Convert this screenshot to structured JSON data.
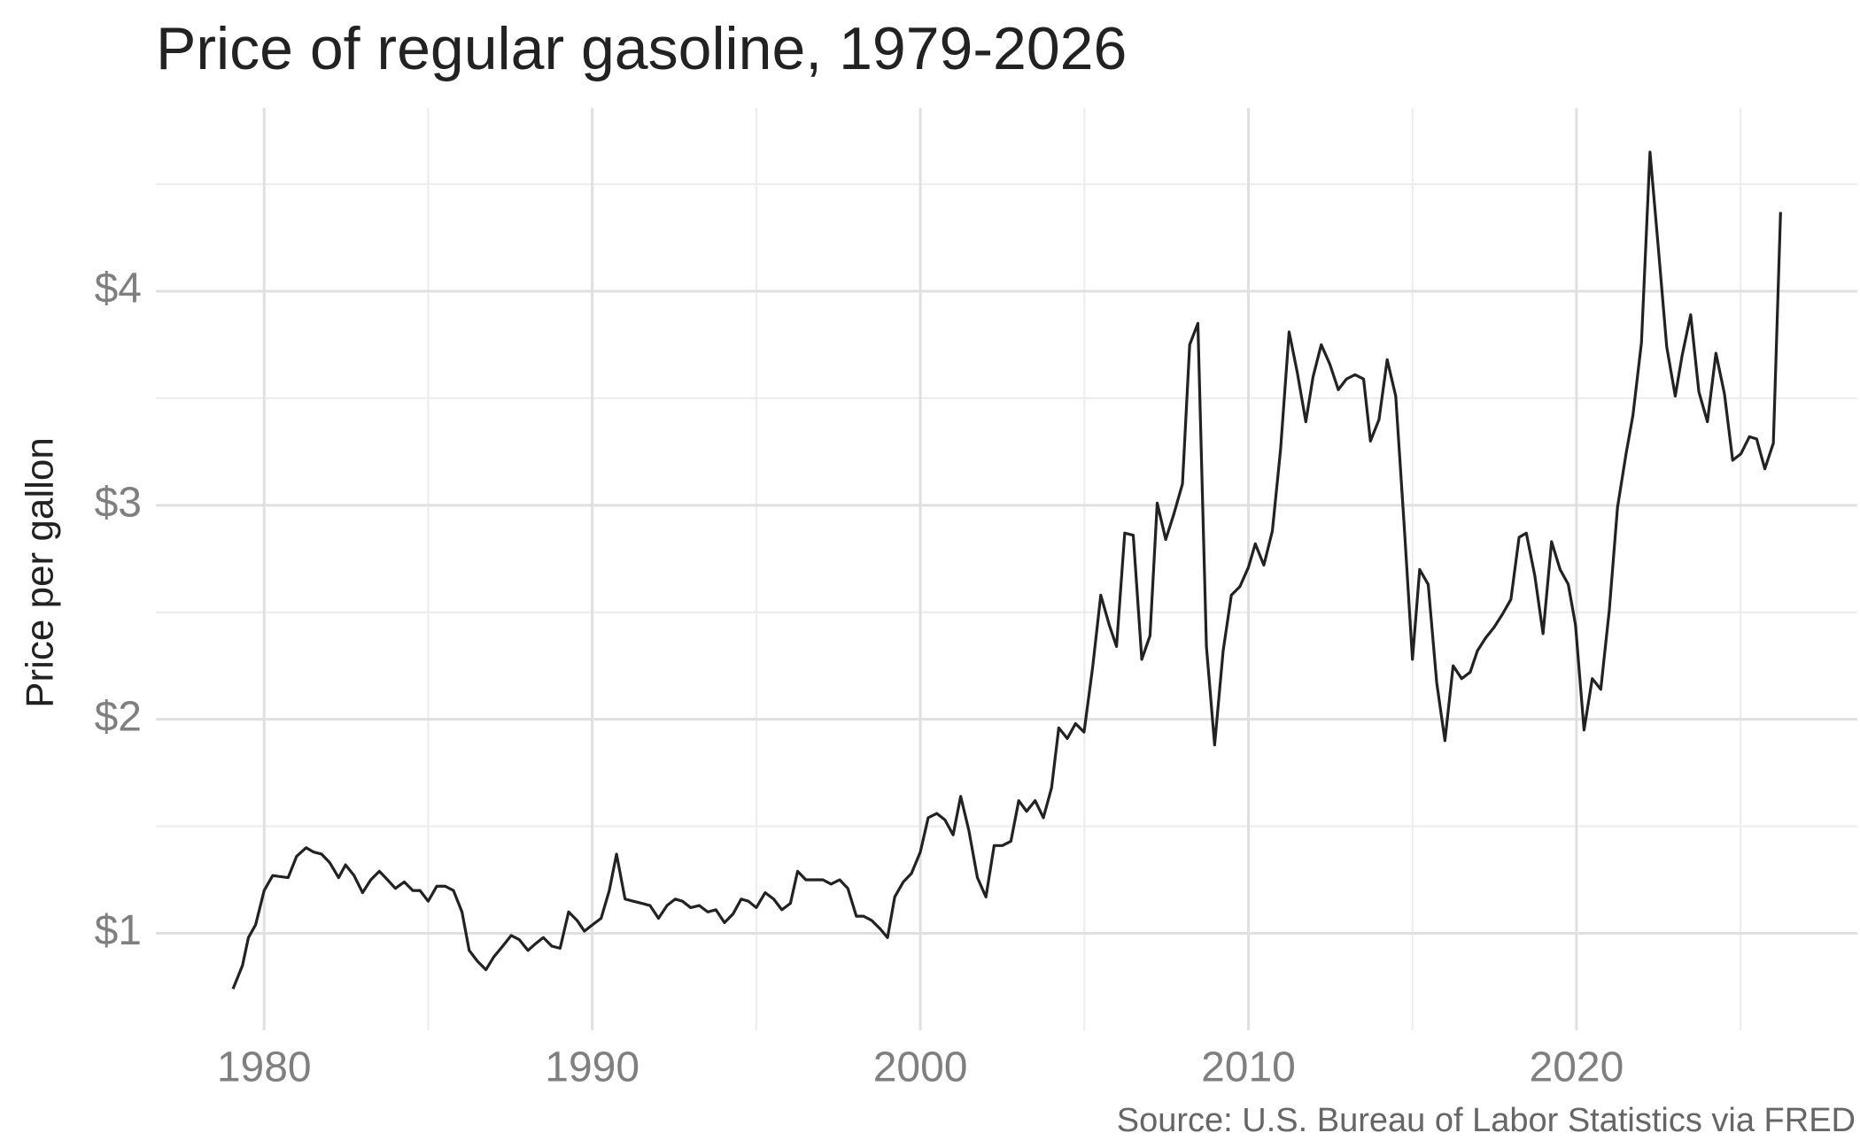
{
  "chart_data": {
    "type": "line",
    "title": "Price of regular gasoline, 1979-2026",
    "y_label": "Price per gallon",
    "caption": "Source: U.S. Bureau of Labor Statistics via FRED",
    "color": "#222222",
    "grid": true,
    "xlim": [
      1976.7,
      2028.56
    ],
    "ylim": [
      0.547,
      4.856
    ],
    "xticks": [
      1980,
      1990,
      2000,
      2010,
      2020
    ],
    "x_minor_grid": [
      1985,
      1995,
      2005,
      2015,
      2025
    ],
    "yticks": [
      {
        "value": 1,
        "label": "$1"
      },
      {
        "value": 2,
        "label": "$2"
      },
      {
        "value": 3,
        "label": "$3"
      },
      {
        "value": 4,
        "label": "$4"
      }
    ],
    "y_minor_grid": [
      1.5,
      2.5,
      3.5,
      4.5
    ],
    "x": [
      1979.05,
      1979.34,
      1979.52,
      1979.74,
      1980.0,
      1980.26,
      1980.73,
      1980.99,
      1981.28,
      1981.5,
      1981.75,
      1982.0,
      1982.27,
      1982.48,
      1982.74,
      1983.0,
      1983.25,
      1983.51,
      1983.76,
      1984.0,
      1984.27,
      1984.53,
      1984.75,
      1985.0,
      1985.26,
      1985.52,
      1985.77,
      1986.03,
      1986.25,
      1986.5,
      1986.76,
      1987.0,
      1987.27,
      1987.53,
      1987.78,
      1988.04,
      1988.26,
      1988.51,
      1988.77,
      1989.02,
      1989.28,
      1989.54,
      1989.76,
      1990.01,
      1990.27,
      1990.52,
      1990.74,
      1991.0,
      1991.25,
      1991.51,
      1991.76,
      1992.02,
      1992.28,
      1992.53,
      1992.75,
      1993.0,
      1993.26,
      1993.52,
      1993.77,
      1994.03,
      1994.29,
      1994.54,
      1994.76,
      1995.0,
      1995.27,
      1995.53,
      1995.78,
      1996.04,
      1996.26,
      1996.51,
      1996.77,
      1997.03,
      1997.28,
      1997.54,
      1997.79,
      1998.05,
      1998.27,
      1998.52,
      1998.78,
      1999.0,
      1999.22,
      1999.48,
      1999.73,
      2000.0,
      2000.24,
      2000.5,
      2000.75,
      2001.0,
      2001.23,
      2001.48,
      2001.74,
      2002.0,
      2002.25,
      2002.5,
      2002.76,
      2003.0,
      2003.24,
      2003.5,
      2003.75,
      2004.0,
      2004.22,
      2004.48,
      2004.73,
      2004.99,
      2005.25,
      2005.5,
      2005.76,
      2005.98,
      2006.23,
      2006.49,
      2006.75,
      2007.0,
      2007.22,
      2007.48,
      2007.73,
      2007.99,
      2008.21,
      2008.46,
      2008.72,
      2008.97,
      2009.23,
      2009.48,
      2009.74,
      2010.0,
      2010.21,
      2010.47,
      2010.73,
      2010.98,
      2011.24,
      2011.49,
      2011.75,
      2011.97,
      2012.22,
      2012.48,
      2012.74,
      2012.99,
      2013.25,
      2013.51,
      2013.72,
      2013.98,
      2014.23,
      2014.49,
      2014.75,
      2015.0,
      2015.22,
      2015.48,
      2015.74,
      2015.99,
      2016.24,
      2016.5,
      2016.76,
      2016.98,
      2017.23,
      2017.49,
      2017.74,
      2018.0,
      2018.25,
      2018.47,
      2018.73,
      2018.98,
      2019.24,
      2019.5,
      2019.75,
      2019.97,
      2020.23,
      2020.48,
      2020.74,
      2021.0,
      2021.25,
      2021.51,
      2021.72,
      2021.98,
      2022.24,
      2022.49,
      2022.75,
      2023.01,
      2023.22,
      2023.48,
      2023.73,
      2023.99,
      2024.25,
      2024.51,
      2024.76,
      2025.01,
      2025.27,
      2025.49,
      2025.74,
      2026.0,
      2026.22
    ],
    "values": [
      0.74,
      0.85,
      0.98,
      1.04,
      1.2,
      1.27,
      1.26,
      1.36,
      1.4,
      1.38,
      1.37,
      1.33,
      1.26,
      1.32,
      1.27,
      1.19,
      1.25,
      1.29,
      1.25,
      1.21,
      1.24,
      1.2,
      1.2,
      1.15,
      1.22,
      1.22,
      1.2,
      1.1,
      0.92,
      0.87,
      0.83,
      0.89,
      0.94,
      0.99,
      0.97,
      0.92,
      0.95,
      0.98,
      0.94,
      0.93,
      1.1,
      1.06,
      1.01,
      1.04,
      1.07,
      1.2,
      1.37,
      1.16,
      1.15,
      1.14,
      1.13,
      1.07,
      1.13,
      1.16,
      1.15,
      1.12,
      1.13,
      1.1,
      1.11,
      1.05,
      1.09,
      1.16,
      1.15,
      1.12,
      1.19,
      1.16,
      1.11,
      1.14,
      1.29,
      1.25,
      1.25,
      1.25,
      1.23,
      1.25,
      1.21,
      1.08,
      1.08,
      1.06,
      1.02,
      0.98,
      1.17,
      1.24,
      1.28,
      1.38,
      1.54,
      1.56,
      1.53,
      1.46,
      1.64,
      1.48,
      1.26,
      1.17,
      1.41,
      1.41,
      1.43,
      1.62,
      1.57,
      1.62,
      1.54,
      1.68,
      1.96,
      1.91,
      1.98,
      1.94,
      2.24,
      2.58,
      2.44,
      2.34,
      2.87,
      2.86,
      2.28,
      2.39,
      3.01,
      2.84,
      2.96,
      3.1,
      3.75,
      3.85,
      2.34,
      1.88,
      2.32,
      2.58,
      2.62,
      2.71,
      2.82,
      2.72,
      2.88,
      3.26,
      3.81,
      3.62,
      3.39,
      3.6,
      3.75,
      3.66,
      3.54,
      3.59,
      3.61,
      3.59,
      3.3,
      3.4,
      3.68,
      3.51,
      2.9,
      2.28,
      2.7,
      2.63,
      2.17,
      1.9,
      2.25,
      2.19,
      2.22,
      2.32,
      2.38,
      2.43,
      2.49,
      2.56,
      2.85,
      2.87,
      2.67,
      2.4,
      2.83,
      2.7,
      2.63,
      2.44,
      1.95,
      2.19,
      2.14,
      2.51,
      2.99,
      3.24,
      3.42,
      3.76,
      4.65,
      4.21,
      3.74,
      3.51,
      3.7,
      3.89,
      3.53,
      3.39,
      3.71,
      3.52,
      3.21,
      3.24,
      3.32,
      3.31,
      3.17,
      3.29,
      4.37
    ]
  }
}
